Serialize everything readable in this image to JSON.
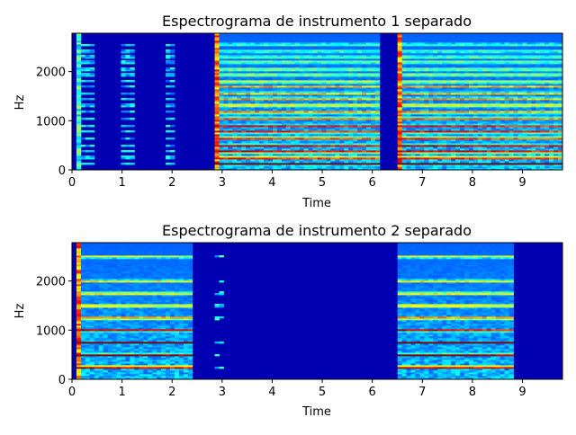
{
  "chart_data": [
    {
      "type": "heatmap",
      "title": "Espectrograma de instrumento 1 separado",
      "xlabel": "Time",
      "ylabel": "Hz",
      "xlim": [
        0,
        9.8
      ],
      "ylim": [
        0,
        2780
      ],
      "xticks": [
        "0",
        "1",
        "2",
        "3",
        "4",
        "5",
        "6",
        "7",
        "8",
        "9"
      ],
      "yticks": [
        "0",
        "1000",
        "2000"
      ],
      "colormap": "jet",
      "events": [
        {
          "start": 0.1,
          "end": 0.2,
          "style": "vertical-pulse",
          "intensity": 0.55
        },
        {
          "start": 0.2,
          "end": 2.45,
          "style": "sparse-pulses",
          "intensity": 0.35
        },
        {
          "start": 2.85,
          "end": 6.15,
          "style": "sustained-harmonics",
          "intensity": 0.9
        },
        {
          "start": 6.5,
          "end": 9.8,
          "style": "sustained-harmonics",
          "intensity": 0.9
        }
      ],
      "harmonics_hz": [
        125,
        250,
        375,
        500,
        650,
        780,
        900,
        1050,
        1180,
        1320,
        1450,
        1560,
        1700,
        1800,
        1940,
        2050,
        2200,
        2300,
        2420,
        2550
      ],
      "gaps": [
        [
          6.15,
          6.5
        ]
      ]
    },
    {
      "type": "heatmap",
      "title": "Espectrograma de instrumento 2 separado",
      "xlabel": "Time",
      "ylabel": "Hz",
      "xlim": [
        0,
        9.8
      ],
      "ylim": [
        0,
        2780
      ],
      "xticks": [
        "0",
        "1",
        "2",
        "3",
        "4",
        "5",
        "6",
        "7",
        "8",
        "9"
      ],
      "yticks": [
        "0",
        "1000",
        "2000"
      ],
      "colormap": "jet",
      "events": [
        {
          "start": 0.1,
          "end": 2.45,
          "style": "sustained-harmonics",
          "intensity": 1.0
        },
        {
          "start": 2.85,
          "end": 3.05,
          "style": "faint-dots",
          "intensity": 0.4
        },
        {
          "start": 6.5,
          "end": 8.8,
          "style": "sustained-harmonics",
          "intensity": 1.0
        }
      ],
      "harmonics_hz": [
        250,
        500,
        750,
        1000,
        1250,
        1500,
        1750,
        2000,
        2500
      ],
      "gaps": []
    }
  ]
}
